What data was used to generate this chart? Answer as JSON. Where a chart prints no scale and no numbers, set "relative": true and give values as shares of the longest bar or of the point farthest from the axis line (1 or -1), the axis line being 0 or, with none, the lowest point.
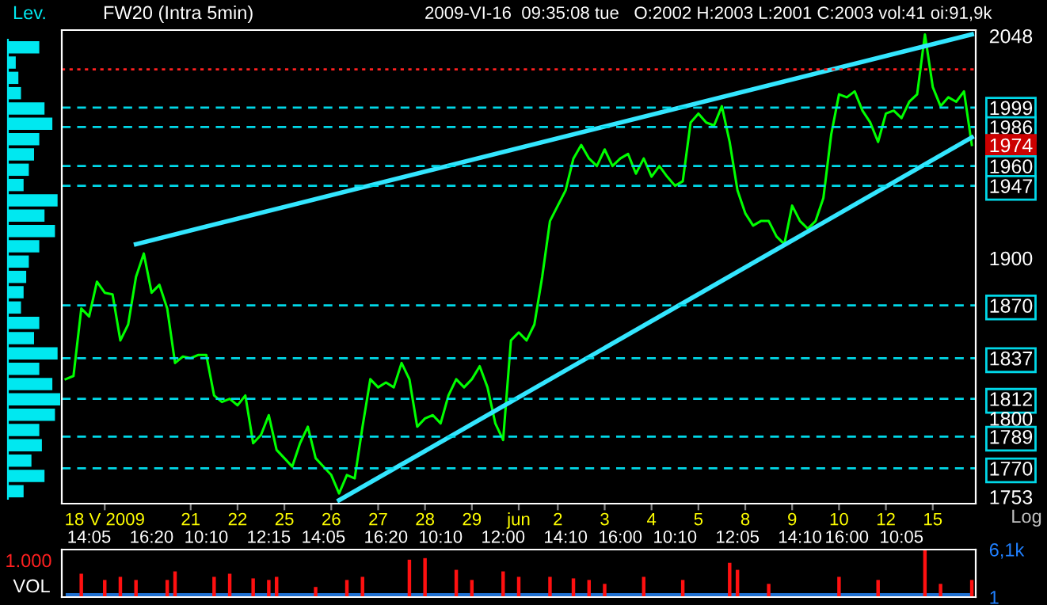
{
  "chart_data": [
    {
      "type": "line",
      "title": "FW20 (Intra 5min)",
      "subtitle": "2009-VI-16  09:35:08 tue   O:2002 H:2003 L:2001 C:2003 vol:41 oi:91,9k",
      "annotations": [
        "Log"
      ],
      "categories": [
        null,
        null,
        null,
        "14:05",
        null,
        "18 V 2009",
        null,
        null,
        null,
        null,
        null,
        "16:20",
        null,
        null,
        null,
        null,
        "21",
        null,
        "10:10",
        null,
        null,
        null,
        "22",
        null,
        null,
        null,
        "12:15",
        null,
        "25",
        null,
        null,
        null,
        null,
        "14:05",
        "26",
        null,
        null,
        null,
        null,
        null,
        "27",
        "16:20",
        null,
        null,
        null,
        null,
        "28",
        null,
        "10:10",
        null,
        null,
        null,
        "29",
        null,
        null,
        null,
        "12:00",
        null,
        "jun",
        null,
        null,
        null,
        null,
        "2",
        "14:10",
        null,
        null,
        null,
        null,
        "3",
        null,
        "16:00",
        null,
        null,
        null,
        "4",
        null,
        null,
        "10:10",
        null,
        null,
        "5",
        null,
        null,
        null,
        null,
        "12:05",
        "8",
        null,
        null,
        null,
        null,
        null,
        "9",
        "14:10",
        null,
        null,
        null,
        null,
        "10",
        "16:00",
        null,
        null,
        null,
        null,
        "12",
        null,
        "10:05",
        null,
        null,
        null,
        "15",
        null,
        null,
        null,
        null,
        null
      ],
      "log": "y",
      "ylim": [
        1749,
        2052
      ],
      "yticks": [
        2048,
        1999,
        1986,
        1974,
        1960,
        1947,
        1900,
        1870,
        1837,
        1812,
        1800,
        1789,
        1770,
        1753
      ],
      "series": [
        {
          "type": "line",
          "color": "#00ff00",
          "values": [
            1824,
            1826,
            1868,
            1863,
            1885,
            1878,
            1877,
            1848,
            1858,
            1888,
            1903,
            1878,
            1883,
            1868,
            1834,
            1838,
            1837,
            1839,
            1839,
            1814,
            1810,
            1812,
            1808,
            1814,
            1785,
            1790,
            1802,
            1781,
            1776,
            1771,
            1785,
            1795,
            1776,
            1771,
            1766,
            1755,
            1766,
            1764,
            1795,
            1824,
            1819,
            1822,
            1819,
            1834,
            1824,
            1795,
            1800,
            1802,
            1797,
            1814,
            1824,
            1819,
            1824,
            1832,
            1819,
            1797,
            1787,
            1848,
            1853,
            1848,
            1858,
            1888,
            1924,
            1934,
            1944,
            1965,
            1974,
            1965,
            1960,
            1971,
            1960,
            1965,
            1968,
            1955,
            1965,
            1953,
            1960,
            1953,
            1947,
            1950,
            1989,
            1995,
            1989,
            1987,
            2000,
            1976,
            1944,
            1929,
            1921,
            1924,
            1924,
            1914,
            1909,
            1934,
            1924,
            1919,
            1924,
            1939,
            1981,
            2008,
            2006,
            2010,
            1997,
            1989,
            1976,
            1995,
            1997,
            1992,
            2003,
            2008,
            2049,
            2013,
            2000,
            2006,
            2003,
            2010,
            1974
          ]
        },
        {
          "type": "line",
          "color": "#33e6ff",
          "values": [
            null,
            null,
            null,
            null,
            null,
            null,
            null,
            null,
            null,
            1909,
            null,
            null,
            null,
            null,
            null,
            null,
            null,
            null,
            null,
            null,
            null,
            null,
            null,
            null,
            null,
            null,
            null,
            null,
            null,
            null,
            null,
            null,
            null,
            null,
            null,
            null,
            null,
            null,
            null,
            null,
            null,
            null,
            null,
            null,
            null,
            null,
            null,
            null,
            null,
            null,
            null,
            null,
            null,
            null,
            null,
            null,
            null,
            null,
            null,
            null,
            null,
            null,
            null,
            null,
            null,
            null,
            null,
            null,
            null,
            null,
            null,
            null,
            null,
            null,
            null,
            null,
            null,
            null,
            null,
            null,
            null,
            null,
            null,
            null,
            null,
            null,
            null,
            null,
            null,
            null,
            null,
            null,
            null,
            null,
            null,
            null,
            null,
            null,
            null,
            null,
            null,
            null,
            null,
            null,
            null,
            null,
            null,
            null,
            null,
            null,
            null,
            null,
            null,
            null,
            null,
            null,
            2049
          ]
        },
        {
          "type": "line",
          "color": "#33e6ff",
          "values": [
            null,
            null,
            null,
            null,
            null,
            null,
            null,
            null,
            null,
            null,
            null,
            null,
            null,
            null,
            null,
            null,
            null,
            null,
            null,
            null,
            null,
            null,
            null,
            null,
            null,
            null,
            null,
            null,
            null,
            null,
            null,
            null,
            null,
            null,
            null,
            1751,
            null,
            null,
            null,
            null,
            null,
            null,
            null,
            null,
            null,
            null,
            null,
            null,
            null,
            null,
            null,
            null,
            null,
            null,
            null,
            null,
            null,
            null,
            null,
            null,
            null,
            null,
            null,
            null,
            null,
            null,
            null,
            null,
            null,
            null,
            null,
            null,
            null,
            null,
            null,
            null,
            null,
            null,
            null,
            null,
            null,
            null,
            null,
            null,
            null,
            null,
            null,
            null,
            null,
            null,
            null,
            null,
            null,
            null,
            null,
            null,
            null,
            null,
            null,
            null,
            null,
            null,
            null,
            null,
            null,
            null,
            null,
            null,
            null,
            null,
            null,
            null,
            null,
            null,
            null,
            null,
            1979
          ]
        }
      ],
      "ref_lines": [
        {
          "axis": "y",
          "value": 1999,
          "color": "#00d8e8",
          "line_style": "dashed"
        },
        {
          "axis": "y",
          "value": 1986,
          "color": "#00d8e8",
          "line_style": "dashed"
        },
        {
          "axis": "y",
          "value": 1960,
          "color": "#00d8e8",
          "line_style": "dashed"
        },
        {
          "axis": "y",
          "value": 1947,
          "color": "#00d8e8",
          "line_style": "dashed"
        },
        {
          "axis": "y",
          "value": 1870,
          "color": "#00d8e8",
          "line_style": "dashed"
        },
        {
          "axis": "y",
          "value": 1837,
          "color": "#00d8e8",
          "line_style": "dashed"
        },
        {
          "axis": "y",
          "value": 1812,
          "color": "#00d8e8",
          "line_style": "dashed"
        },
        {
          "axis": "y",
          "value": 1789,
          "color": "#00d8e8",
          "line_style": "dashed"
        },
        {
          "axis": "y",
          "value": 1770,
          "color": "#00d8e8",
          "line_style": "dashed"
        },
        {
          "axis": "y",
          "value": 2025,
          "color": "#ff2020",
          "line_style": "dotted"
        }
      ]
    },
    {
      "type": "bar",
      "orientation": "horizontal",
      "relative": true,
      "title": "Lev.",
      "color": "#00e8f0",
      "categories": [
        null,
        null,
        null,
        null,
        null,
        null,
        null,
        null,
        null,
        null,
        null,
        null,
        null,
        null,
        null,
        null,
        null,
        null,
        null,
        null,
        null,
        null,
        null,
        null,
        null,
        null,
        null,
        null,
        null,
        null
      ],
      "values": [
        0.6,
        0.15,
        0.2,
        0.25,
        0.7,
        0.85,
        0.6,
        0.5,
        0.4,
        0.3,
        0.95,
        0.7,
        0.9,
        0.6,
        0.4,
        0.35,
        0.3,
        0.25,
        0.6,
        0.5,
        0.95,
        0.6,
        0.85,
        1.0,
        0.9,
        0.6,
        0.65,
        0.45,
        0.7,
        0.3
      ]
    },
    {
      "type": "bar",
      "ylabel": "VOL",
      "annotations": [
        "1.000"
      ],
      "ylim": [
        1,
        6100
      ],
      "yticks": [
        {
          "value": 6100,
          "label": "6,1k"
        },
        1
      ],
      "tick_labels": "y",
      "categories": [
        null,
        null,
        null,
        null,
        null,
        null,
        null,
        null,
        null,
        null,
        null,
        null,
        null,
        null,
        null,
        null,
        null,
        null,
        null,
        null,
        null,
        null,
        null,
        null,
        null,
        null,
        null,
        null,
        null,
        null,
        null,
        null,
        null,
        null,
        null,
        null,
        null,
        null,
        null,
        null,
        null,
        null,
        null,
        null,
        null,
        null,
        null,
        null,
        null,
        null,
        null,
        null,
        null,
        null,
        null,
        null,
        null,
        null,
        null,
        null,
        null,
        null,
        null,
        null,
        null,
        null,
        null,
        null,
        null,
        null,
        null,
        null,
        null,
        null,
        null,
        null,
        null,
        null,
        null,
        null,
        null,
        null,
        null,
        null,
        null,
        null,
        null,
        null,
        null,
        null,
        null,
        null,
        null,
        null,
        null,
        null,
        null,
        null,
        null,
        null,
        null,
        null,
        null,
        null,
        null,
        null,
        null,
        null,
        null,
        null,
        null,
        null,
        null,
        null,
        null,
        null,
        null
      ],
      "series": [
        {
          "type": "area",
          "color": "#1f6fd0",
          "values": [
            500,
            500,
            500,
            500,
            500,
            500,
            500,
            500,
            500,
            500,
            500,
            500,
            500,
            500,
            500,
            500,
            500,
            500,
            500,
            500,
            500,
            500,
            500,
            500,
            500,
            500,
            500,
            500,
            500,
            500,
            500,
            500,
            500,
            500,
            500,
            500,
            500,
            500,
            500,
            500,
            500,
            500,
            500,
            500,
            500,
            500,
            500,
            500,
            500,
            500,
            500,
            500,
            500,
            500,
            500,
            500,
            500,
            500,
            500,
            500,
            500,
            500,
            500,
            500,
            500,
            500,
            500,
            500,
            500,
            500,
            500,
            500,
            500,
            500,
            500,
            500,
            500,
            500,
            500,
            500,
            500,
            500,
            500,
            500,
            500,
            500,
            500,
            500,
            500,
            500,
            500,
            500,
            500,
            500,
            500,
            500,
            500,
            500,
            500,
            500,
            500,
            500,
            500,
            500,
            500,
            500,
            500,
            500,
            500,
            500,
            500,
            500,
            500,
            500,
            500,
            500,
            500
          ]
        },
        {
          "type": "bar",
          "color": "#ff1010",
          "values": [
            null,
            null,
            3000,
            null,
            null,
            2200,
            null,
            2600,
            null,
            2200,
            null,
            null,
            null,
            2200,
            3300,
            null,
            null,
            null,
            null,
            2600,
            null,
            3000,
            null,
            null,
            2400,
            null,
            2200,
            2600,
            null,
            null,
            null,
            null,
            1300,
            null,
            null,
            null,
            2200,
            null,
            2600,
            null,
            null,
            null,
            null,
            null,
            4800,
            null,
            5000,
            null,
            null,
            null,
            3500,
            null,
            2200,
            null,
            null,
            null,
            3300,
            null,
            2600,
            null,
            null,
            null,
            2600,
            null,
            null,
            2400,
            null,
            2200,
            null,
            1700,
            null,
            null,
            null,
            null,
            2600,
            null,
            null,
            null,
            null,
            2200,
            null,
            null,
            null,
            null,
            null,
            4400,
            3500,
            null,
            null,
            null,
            1700,
            null,
            null,
            null,
            null,
            null,
            null,
            null,
            null,
            2600,
            null,
            null,
            null,
            null,
            2200,
            null,
            null,
            null,
            null,
            null,
            6100,
            null,
            1700,
            null,
            null,
            null,
            2200
          ]
        }
      ]
    }
  ]
}
